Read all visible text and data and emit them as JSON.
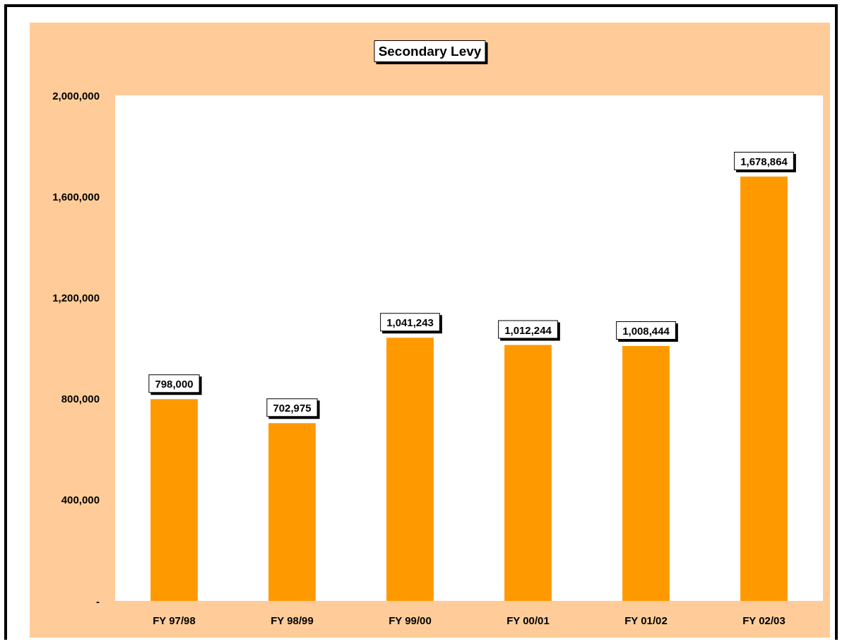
{
  "chart_data": {
    "type": "bar",
    "title": "Secondary Levy",
    "categories": [
      "FY 97/98",
      "FY 98/99",
      "FY 99/00",
      "FY 00/01",
      "FY 01/02",
      "FY 02/03"
    ],
    "values": [
      798000,
      702975,
      1041243,
      1012244,
      1008444,
      1678864
    ],
    "value_labels": [
      "798,000",
      "702,975",
      "1,041,243",
      "1,012,244",
      "1,008,444",
      "1,678,864"
    ],
    "color": "#ff9900",
    "ylim": [
      0,
      2000000
    ],
    "yticks": [
      {
        "value": 0,
        "label": "-"
      },
      {
        "value": 400000,
        "label": "400,000"
      },
      {
        "value": 800000,
        "label": "800,000"
      },
      {
        "value": 1200000,
        "label": "1,200,000"
      },
      {
        "value": 1600000,
        "label": "1,600,000"
      },
      {
        "value": 2000000,
        "label": "2,000,000"
      }
    ],
    "grid": false
  }
}
